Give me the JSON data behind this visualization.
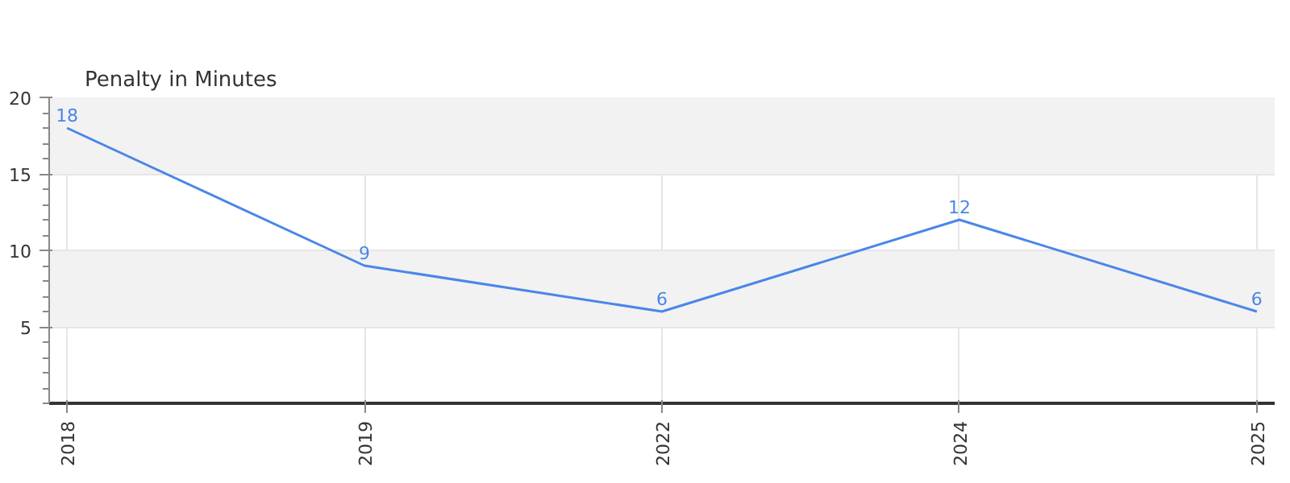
{
  "chart_data": {
    "type": "line",
    "title": "Penalty in Minutes",
    "categories": [
      "2018",
      "2019",
      "2022",
      "2024",
      "2025"
    ],
    "series": [
      {
        "color": "#4a86e8",
        "values": [
          18,
          9,
          6,
          12,
          6
        ]
      }
    ],
    "ylim": [
      0,
      20
    ],
    "yticks": [
      5,
      10,
      15,
      20
    ],
    "grid": true,
    "data_labels": true,
    "marker": "none",
    "line_style": "solid"
  }
}
